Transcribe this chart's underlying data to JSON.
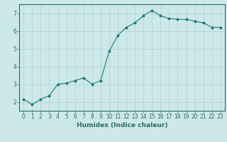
{
  "x": [
    0,
    1,
    2,
    3,
    4,
    5,
    6,
    7,
    8,
    9,
    10,
    11,
    12,
    13,
    14,
    15,
    16,
    17,
    18,
    19,
    20,
    21,
    22,
    23
  ],
  "y": [
    2.15,
    1.85,
    2.15,
    2.35,
    3.0,
    3.05,
    3.2,
    3.35,
    3.0,
    3.2,
    4.85,
    5.75,
    6.2,
    6.45,
    6.85,
    7.15,
    6.85,
    6.7,
    6.65,
    6.65,
    6.55,
    6.45,
    6.2,
    6.2
  ],
  "line_color": "#1a7a6e",
  "marker": "*",
  "marker_size": 2.5,
  "bg_color": "#cce8eb",
  "grid_color": "#b0cfd4",
  "xlabel": "Humidex (Indice chaleur)",
  "xlim": [
    -0.5,
    23.5
  ],
  "ylim": [
    1.5,
    7.5
  ],
  "yticks": [
    2,
    3,
    4,
    5,
    6,
    7
  ],
  "xticks": [
    0,
    1,
    2,
    3,
    4,
    5,
    6,
    7,
    8,
    9,
    10,
    11,
    12,
    13,
    14,
    15,
    16,
    17,
    18,
    19,
    20,
    21,
    22,
    23
  ],
  "axis_color": "#2d6b60",
  "tick_color": "#2d6b60",
  "label_fontsize": 6.5,
  "tick_fontsize": 5.5
}
